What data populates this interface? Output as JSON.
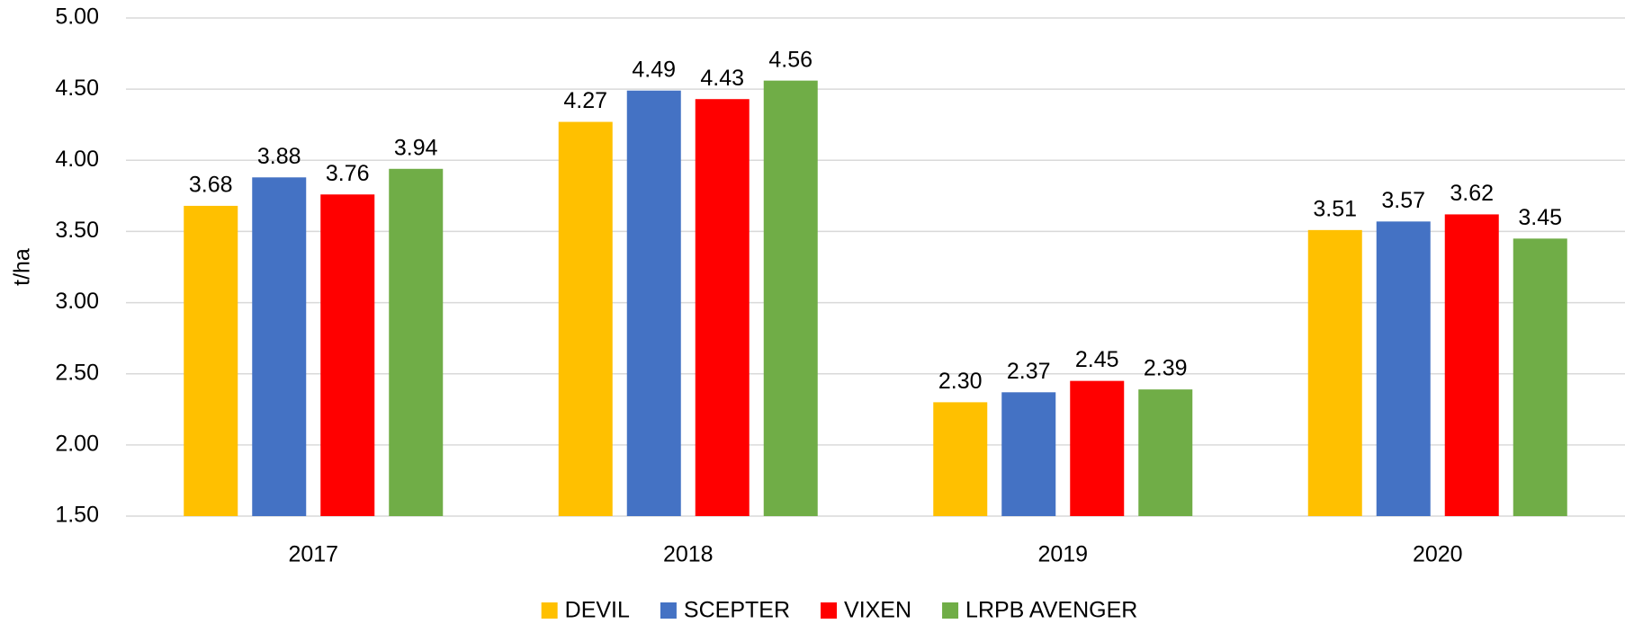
{
  "chart_data": {
    "type": "bar",
    "y_label": "t/ha",
    "categories": [
      "2017",
      "2018",
      "2019",
      "2020"
    ],
    "series": [
      {
        "name": "DEVIL",
        "color": "#ffc000",
        "values": [
          3.68,
          4.27,
          2.3,
          3.51
        ],
        "value_labels": [
          "3.68",
          "4.27",
          "2.30",
          "3.51"
        ]
      },
      {
        "name": "SCEPTER",
        "color": "#4472c4",
        "values": [
          3.88,
          4.49,
          2.37,
          3.57
        ],
        "value_labels": [
          "3.88",
          "4.49",
          "2.37",
          "3.57"
        ]
      },
      {
        "name": "VIXEN",
        "color": "#ff0000",
        "values": [
          3.76,
          4.43,
          2.45,
          3.62
        ],
        "value_labels": [
          "3.76",
          "4.43",
          "2.45",
          "3.62"
        ]
      },
      {
        "name": "LRPB AVENGER",
        "color": "#70ad47",
        "values": [
          3.94,
          4.56,
          2.39,
          3.45
        ],
        "value_labels": [
          "3.94",
          "4.56",
          "2.39",
          "3.45"
        ]
      }
    ],
    "ylim": [
      1.5,
      5.0
    ],
    "yticks": [
      {
        "value": 1.5,
        "label": "1.50"
      },
      {
        "value": 2.0,
        "label": "2.00"
      },
      {
        "value": 2.5,
        "label": "2.50"
      },
      {
        "value": 3.0,
        "label": "3.00"
      },
      {
        "value": 3.5,
        "label": "3.50"
      },
      {
        "value": 4.0,
        "label": "4.00"
      },
      {
        "value": 4.5,
        "label": "4.50"
      },
      {
        "value": 5.0,
        "label": "5.00"
      }
    ],
    "grid": true,
    "legend": "bottom"
  }
}
